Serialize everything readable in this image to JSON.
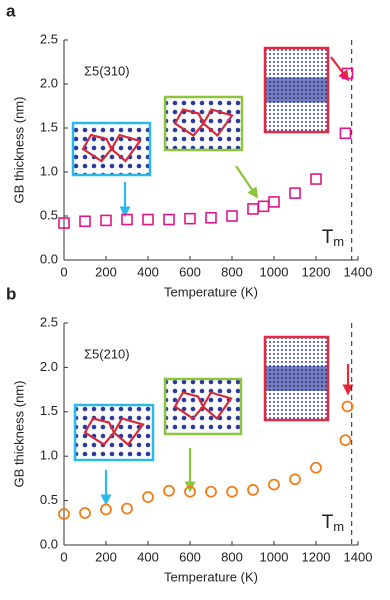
{
  "chart_data": [
    {
      "type": "scatter",
      "panel": "a",
      "annotation": "Σ5(310)",
      "x_label": "Temperature (K)",
      "y_label": "GB thickness (nm)",
      "x": [
        0,
        100,
        200,
        300,
        400,
        500,
        600,
        700,
        800,
        900,
        950,
        1000,
        1100,
        1200,
        1340,
        1350
      ],
      "values": [
        0.42,
        0.44,
        0.45,
        0.46,
        0.46,
        0.46,
        0.47,
        0.48,
        0.5,
        0.58,
        0.61,
        0.66,
        0.76,
        0.92,
        1.44,
        2.12
      ],
      "color": "#e0168a",
      "marker": "square",
      "xlim": [
        0,
        1400
      ],
      "xticks": [
        0,
        200,
        400,
        600,
        800,
        1000,
        1200,
        1400
      ],
      "ylim": [
        0,
        2.5
      ],
      "yticks": [
        {
          "value": 0,
          "label": "0.0"
        },
        0.5,
        {
          "value": 1,
          "label": "1.0"
        },
        1.5,
        {
          "value": 2,
          "label": "2.0"
        },
        2.5
      ],
      "vline": {
        "x": 1370,
        "label": "T",
        "label_sub": "m"
      }
    },
    {
      "type": "scatter",
      "panel": "b",
      "annotation": "Σ5(210)",
      "x_label": "Temperature (K)",
      "y_label": "GB thickness (nm)",
      "x": [
        0,
        100,
        200,
        300,
        400,
        500,
        600,
        700,
        800,
        900,
        1000,
        1100,
        1200,
        1340,
        1350
      ],
      "values": [
        0.35,
        0.36,
        0.4,
        0.41,
        0.54,
        0.61,
        0.6,
        0.6,
        0.6,
        0.62,
        0.68,
        0.74,
        0.87,
        1.18,
        1.56
      ],
      "color": "#f07f1a",
      "marker": "circle",
      "xlim": [
        0,
        1400
      ],
      "xticks": [
        0,
        200,
        400,
        600,
        800,
        1000,
        1200,
        1400
      ],
      "ylim": [
        0,
        2.5
      ],
      "yticks": [
        {
          "value": 0,
          "label": "0.0"
        },
        0.5,
        {
          "value": 1,
          "label": "1.0"
        },
        1.5,
        {
          "value": 2,
          "label": "2.0"
        },
        2.5
      ],
      "vline": {
        "x": 1370,
        "label": "T",
        "label_sub": "m"
      }
    }
  ]
}
